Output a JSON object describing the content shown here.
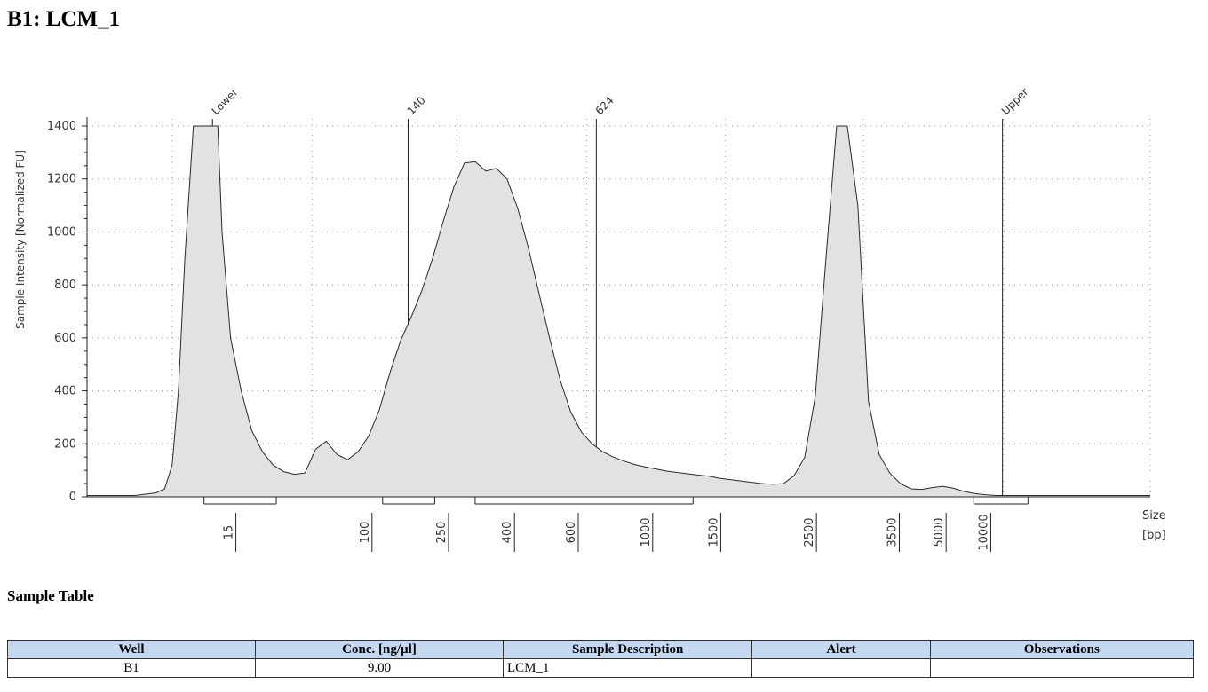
{
  "page_title": "B1: LCM_1",
  "chart_data": {
    "type": "area",
    "title": "",
    "ylabel": "Sample Intensity [Normalized FU]",
    "xlabel": "Size",
    "xunit": "[bp]",
    "ylim": [
      0,
      1400
    ],
    "yticks": [
      "0",
      "200",
      "400",
      "600",
      "800",
      "1000",
      "1200",
      "1400"
    ],
    "grid": true,
    "xtick_labels": [
      "15",
      "100",
      "250",
      "400",
      "600",
      "1000",
      "1500",
      "2500",
      "3500",
      "5000",
      "10000"
    ],
    "peak_labels": [
      "Lower",
      "140",
      "624",
      "Upper"
    ],
    "trace": {
      "x": [
        0,
        1.5,
        3,
        4.5,
        5.5,
        6.5,
        7.3,
        8,
        8.6,
        9.2,
        10,
        10.8,
        11.3,
        11.8,
        12.3,
        12.7,
        13.5,
        14.5,
        15.5,
        16.5,
        17.5,
        18.5,
        19.5,
        20.5,
        21.5,
        22.5,
        23.5,
        24.5,
        25.5,
        26.5,
        27.5,
        28.5,
        29.5,
        30.5,
        31.5,
        32.5,
        33.5,
        34.5,
        35.5,
        36.5,
        37.5,
        38.5,
        39.5,
        40.5,
        41.5,
        42.5,
        43.5,
        44.5,
        45.5,
        46.5,
        47.5,
        48.5,
        49.5,
        50.5,
        51.5,
        52.5,
        53.5,
        54.5,
        55.5,
        56.5,
        57.5,
        58.5,
        59.5,
        60.5,
        61.5,
        62.5,
        63.5,
        64.5,
        65.5,
        66.5,
        67.5,
        68.5,
        69.5,
        70.5,
        71.5,
        72.5,
        73.5,
        74.5,
        75.5,
        76.5,
        77.5,
        78.5,
        79.5,
        80.5,
        81.5,
        82.5,
        83.5,
        84.5,
        85.5,
        86.5,
        87.5,
        88.5,
        89.5,
        90.5,
        91.5,
        92.5,
        93.5,
        94.5,
        95.5,
        96.5,
        97.5,
        98.5,
        99.5,
        100
      ],
      "y": [
        5,
        5,
        5,
        5,
        10,
        15,
        30,
        120,
        400,
        900,
        1400,
        1400,
        1400,
        1400,
        1400,
        1000,
        600,
        400,
        250,
        170,
        120,
        95,
        85,
        90,
        180,
        210,
        160,
        140,
        170,
        230,
        330,
        470,
        590,
        680,
        780,
        900,
        1040,
        1170,
        1260,
        1265,
        1230,
        1240,
        1200,
        1090,
        940,
        770,
        600,
        440,
        320,
        245,
        200,
        170,
        150,
        135,
        122,
        113,
        105,
        97,
        92,
        87,
        82,
        78,
        70,
        65,
        60,
        55,
        50,
        48,
        50,
        80,
        150,
        380,
        900,
        1400,
        1400,
        1100,
        360,
        160,
        90,
        50,
        30,
        28,
        35,
        40,
        32,
        20,
        12,
        8,
        5,
        5,
        5,
        5,
        5,
        5,
        5,
        5,
        5,
        5,
        5,
        5,
        5,
        5,
        5,
        5
      ]
    },
    "peaks": [
      {
        "label": "Lower",
        "x": 11.8
      },
      {
        "label": "140",
        "x": 30.2
      },
      {
        "label": "624",
        "x": 47.9
      },
      {
        "label": "Upper",
        "x": 86.1
      }
    ],
    "regions": [
      {
        "from": 11.0,
        "to": 17.8
      },
      {
        "from": 27.8,
        "to": 32.7
      },
      {
        "from": 36.5,
        "to": 57.0
      },
      {
        "from": 83.4,
        "to": 88.5
      }
    ],
    "xticks_positions": [
      14.0,
      26.8,
      34.0,
      40.2,
      46.2,
      53.2,
      59.6,
      68.6,
      76.4,
      80.8,
      85.0
    ]
  },
  "sample_table": {
    "title": "Sample Table",
    "columns": [
      "Well",
      "Conc. [ng/µl]",
      "Sample Description",
      "Alert",
      "Observations"
    ],
    "rows": [
      {
        "well": "B1",
        "conc": "9.00",
        "description": "LCM_1",
        "alert": "",
        "observations": ""
      }
    ]
  }
}
